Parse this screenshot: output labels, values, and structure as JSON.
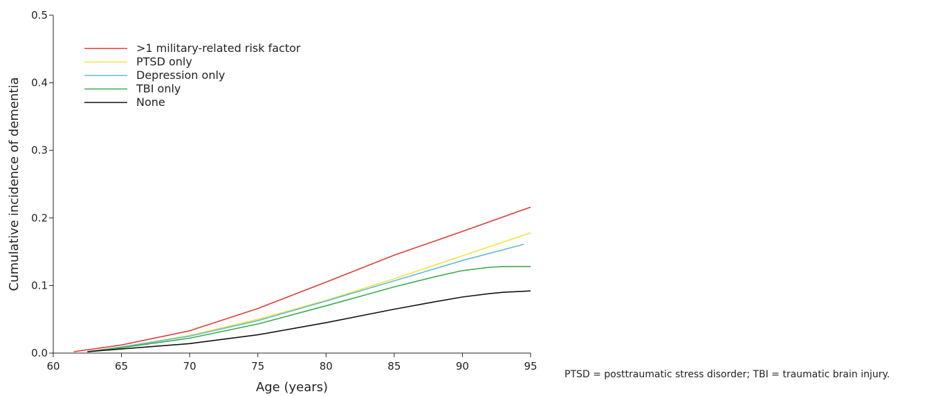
{
  "chart_data": {
    "type": "line",
    "xlabel": "Age (years)",
    "ylabel": "Cumulative incidence of dementia",
    "xlim": [
      60,
      95
    ],
    "ylim": [
      0,
      0.5
    ],
    "xticks": [
      60,
      65,
      70,
      75,
      80,
      85,
      90,
      95
    ],
    "yticks": [
      "0.0",
      "0.1",
      "0.2",
      "0.3",
      "0.4",
      "0.5"
    ],
    "grid": false,
    "legend_position": "top-left",
    "series": [
      {
        "name": ">1 military-related risk factor",
        "color": "#e03a3a",
        "x": [
          61.5,
          65,
          70,
          75,
          80,
          85,
          90,
          95
        ],
        "y": [
          0.002,
          0.012,
          0.033,
          0.066,
          0.105,
          0.145,
          0.18,
          0.216
        ]
      },
      {
        "name": "PTSD only",
        "color": "#f2e33c",
        "x": [
          62.5,
          65,
          70,
          75,
          80,
          85,
          90,
          95
        ],
        "y": [
          0.002,
          0.009,
          0.026,
          0.05,
          0.078,
          0.11,
          0.144,
          0.178
        ]
      },
      {
        "name": "Depression only",
        "color": "#5bbcd6",
        "x": [
          62.5,
          65,
          70,
          75,
          80,
          85,
          90,
          94.5
        ],
        "y": [
          0.002,
          0.009,
          0.025,
          0.048,
          0.077,
          0.107,
          0.137,
          0.161
        ]
      },
      {
        "name": "TBI only",
        "color": "#3aaa4a",
        "x": [
          62.5,
          65,
          70,
          75,
          80,
          85,
          88,
          90,
          92,
          93,
          95
        ],
        "y": [
          0.002,
          0.008,
          0.022,
          0.043,
          0.07,
          0.098,
          0.113,
          0.122,
          0.127,
          0.128,
          0.128
        ]
      },
      {
        "name": "None",
        "color": "#111111",
        "x": [
          62.5,
          65,
          70,
          75,
          80,
          85,
          88,
          90,
          92,
          93,
          95
        ],
        "y": [
          0.002,
          0.006,
          0.014,
          0.027,
          0.045,
          0.065,
          0.076,
          0.083,
          0.088,
          0.09,
          0.092
        ]
      }
    ]
  },
  "footnote": "PTSD = posttraumatic stress disorder; TBI = traumatic brain injury."
}
